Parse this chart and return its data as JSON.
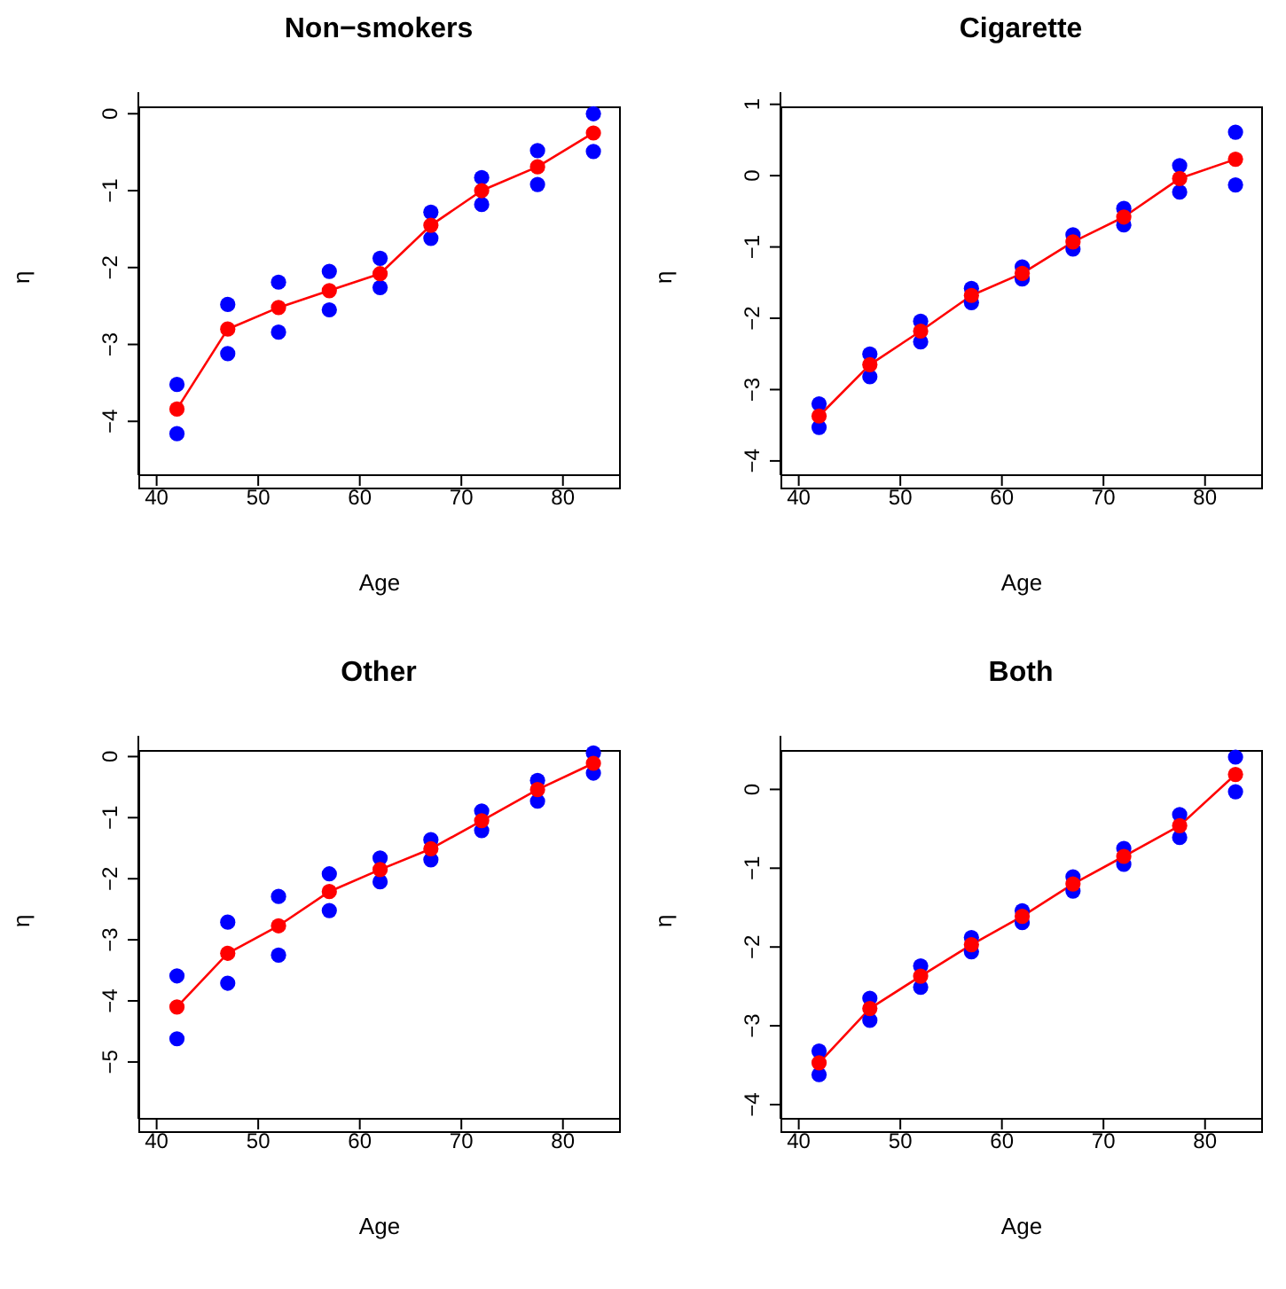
{
  "chart_data": [
    {
      "type": "line",
      "title": "Non−smokers",
      "xlabel": "Age",
      "ylabel": "η",
      "xlim": [
        38.2,
        85.7
      ],
      "xticks": [
        40,
        50,
        60,
        70,
        80
      ],
      "ylim": [
        -4.7,
        0.28
      ],
      "yticks": [
        -4,
        -3,
        -2,
        -1,
        0
      ],
      "marker": "circle",
      "series": [
        {
          "type": "scatter",
          "color": "#0000ff",
          "x": [
            42,
            42,
            47,
            47,
            52,
            52,
            57,
            57,
            62,
            62,
            67,
            67,
            72,
            72,
            77.5,
            77.5,
            83,
            83
          ],
          "values": [
            -3.52,
            -4.16,
            -2.48,
            -3.12,
            -2.19,
            -2.84,
            -2.05,
            -2.55,
            -1.88,
            -2.26,
            -1.28,
            -1.62,
            -0.83,
            -1.18,
            -0.48,
            -0.92,
            0.0,
            -0.49
          ]
        },
        {
          "type": "line",
          "color": "#ff0000",
          "x": [
            42,
            47,
            52,
            57,
            62,
            67,
            72,
            77.5,
            83
          ],
          "values": [
            -3.84,
            -2.8,
            -2.52,
            -2.3,
            -2.08,
            -1.45,
            -1.0,
            -0.69,
            -0.25
          ]
        }
      ]
    },
    {
      "type": "line",
      "title": "Cigarette",
      "xlabel": "Age",
      "ylabel": "η",
      "xlim": [
        38.2,
        85.7
      ],
      "xticks": [
        40,
        50,
        60,
        70,
        80
      ],
      "ylim": [
        -4.2,
        1.17
      ],
      "yticks": [
        -4,
        -3,
        -2,
        -1,
        0,
        1
      ],
      "marker": "circle",
      "series": [
        {
          "type": "scatter",
          "color": "#0000ff",
          "x": [
            42,
            42,
            47,
            47,
            52,
            52,
            57,
            57,
            62,
            62,
            67,
            67,
            72,
            72,
            77.5,
            77.5,
            83,
            83
          ],
          "values": [
            -3.2,
            -3.53,
            -2.5,
            -2.82,
            -2.04,
            -2.33,
            -1.58,
            -1.78,
            -1.28,
            -1.45,
            -0.83,
            -1.03,
            -0.46,
            -0.69,
            0.14,
            -0.23,
            0.61,
            -0.13
          ]
        },
        {
          "type": "line",
          "color": "#ff0000",
          "x": [
            42,
            47,
            52,
            57,
            62,
            67,
            72,
            77.5,
            83
          ],
          "values": [
            -3.37,
            -2.65,
            -2.18,
            -1.68,
            -1.37,
            -0.93,
            -0.58,
            -0.04,
            0.23
          ]
        }
      ]
    },
    {
      "type": "line",
      "title": "Other",
      "xlabel": "Age",
      "ylabel": "η",
      "xlim": [
        38.2,
        85.7
      ],
      "xticks": [
        40,
        50,
        60,
        70,
        80
      ],
      "ylim": [
        -5.93,
        0.34
      ],
      "yticks": [
        -5,
        -4,
        -3,
        -2,
        -1,
        0
      ],
      "marker": "circle",
      "series": [
        {
          "type": "scatter",
          "color": "#0000ff",
          "x": [
            42,
            42,
            47,
            47,
            52,
            52,
            57,
            57,
            62,
            62,
            67,
            67,
            72,
            72,
            77.5,
            77.5,
            83,
            83
          ],
          "values": [
            -3.59,
            -4.62,
            -2.71,
            -3.71,
            -2.29,
            -3.25,
            -1.92,
            -2.52,
            -1.66,
            -2.05,
            -1.36,
            -1.69,
            -0.89,
            -1.21,
            -0.39,
            -0.73,
            0.06,
            -0.27
          ]
        },
        {
          "type": "line",
          "color": "#ff0000",
          "x": [
            42,
            47,
            52,
            57,
            62,
            67,
            72,
            77.5,
            83
          ],
          "values": [
            -4.1,
            -3.22,
            -2.77,
            -2.21,
            -1.85,
            -1.51,
            -1.05,
            -0.54,
            -0.11
          ]
        }
      ]
    },
    {
      "type": "line",
      "title": "Both",
      "xlabel": "Age",
      "ylabel": "η",
      "xlim": [
        38.2,
        85.7
      ],
      "xticks": [
        40,
        50,
        60,
        70,
        80
      ],
      "ylim": [
        -4.18,
        0.68
      ],
      "yticks": [
        -4,
        -3,
        -2,
        -1,
        0
      ],
      "marker": "circle",
      "series": [
        {
          "type": "scatter",
          "color": "#0000ff",
          "x": [
            42,
            42,
            47,
            47,
            52,
            52,
            57,
            57,
            62,
            62,
            67,
            67,
            72,
            72,
            77.5,
            77.5,
            83,
            83
          ],
          "values": [
            -3.32,
            -3.62,
            -2.65,
            -2.93,
            -2.24,
            -2.51,
            -1.88,
            -2.06,
            -1.54,
            -1.69,
            -1.11,
            -1.29,
            -0.75,
            -0.95,
            -0.32,
            -0.61,
            0.41,
            -0.03
          ]
        },
        {
          "type": "line",
          "color": "#ff0000",
          "x": [
            42,
            47,
            52,
            57,
            62,
            67,
            72,
            77.5,
            83
          ],
          "values": [
            -3.47,
            -2.78,
            -2.37,
            -1.97,
            -1.61,
            -1.2,
            -0.85,
            -0.46,
            0.19
          ]
        }
      ]
    }
  ]
}
